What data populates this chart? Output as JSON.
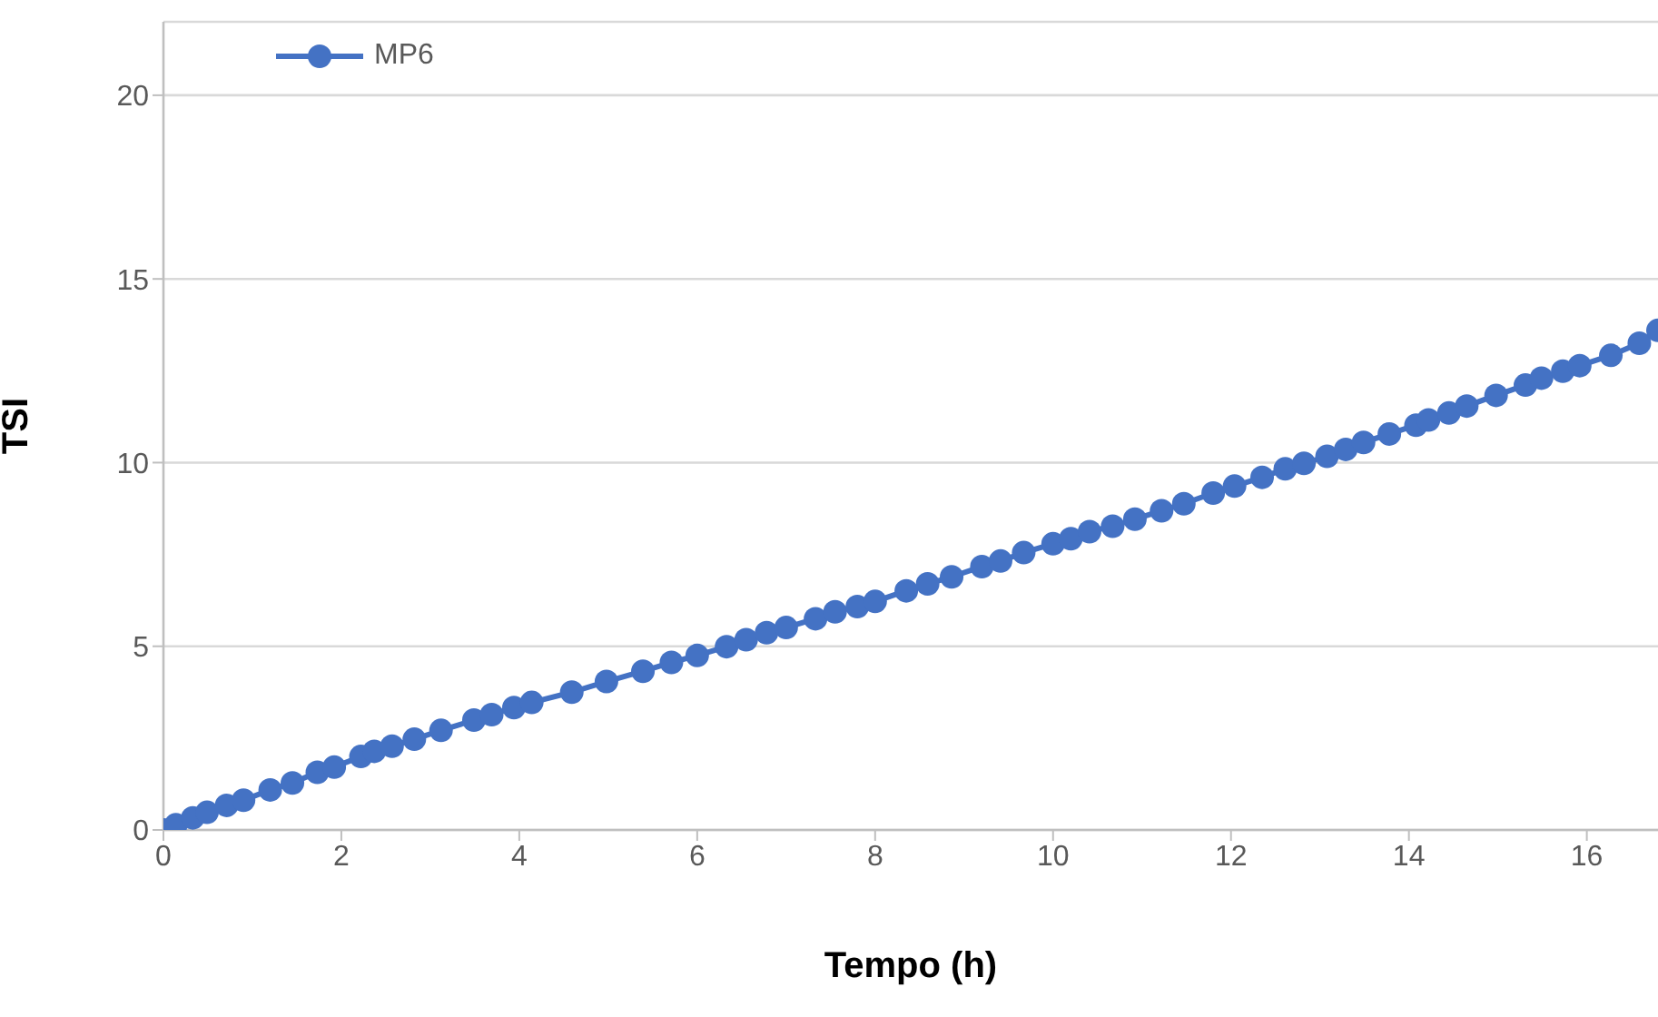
{
  "chart_data": {
    "type": "line",
    "xlabel": "Tempo (h)",
    "ylabel": "TSI",
    "xlim": [
      0,
      16.8
    ],
    "xticks": [
      0,
      2,
      4,
      6,
      8,
      10,
      12,
      14,
      16
    ],
    "ylim": [
      0,
      22
    ],
    "yticks": [
      0,
      5,
      10,
      15,
      20
    ],
    "grid": "y",
    "legend": "top left",
    "marker": "circle",
    "line_style": "solid",
    "x": [
      0,
      0.14,
      0.33,
      0.49,
      0.71,
      0.9,
      1.2,
      1.45,
      1.73,
      1.92,
      2.22,
      2.37,
      2.57,
      2.82,
      3.12,
      3.49,
      3.69,
      3.94,
      4.14,
      4.59,
      4.98,
      5.39,
      5.71,
      6,
      6.33,
      6.55,
      6.78,
      7,
      7.33,
      7.55,
      7.8,
      8,
      8.35,
      8.59,
      8.86,
      9.2,
      9.41,
      9.67,
      10,
      10.2,
      10.41,
      10.67,
      10.92,
      11.22,
      11.47,
      11.8,
      12.04,
      12.35,
      12.61,
      12.82,
      13.08,
      13.29,
      13.49,
      13.78,
      14.08,
      14.22,
      14.45,
      14.65,
      14.98,
      15.31,
      15.49,
      15.73,
      15.92,
      16.27,
      16.59,
      16.8
    ],
    "series": [
      {
        "name": "MP6",
        "color": "#4472c4",
        "values": [
          0,
          0.14,
          0.33,
          0.48,
          0.67,
          0.81,
          1.09,
          1.28,
          1.57,
          1.71,
          2,
          2.14,
          2.28,
          2.47,
          2.71,
          2.99,
          3.14,
          3.33,
          3.47,
          3.75,
          4.04,
          4.32,
          4.56,
          4.75,
          4.99,
          5.18,
          5.37,
          5.51,
          5.75,
          5.94,
          6.08,
          6.22,
          6.51,
          6.7,
          6.89,
          7.17,
          7.32,
          7.55,
          7.79,
          7.93,
          8.12,
          8.27,
          8.46,
          8.69,
          8.88,
          9.17,
          9.36,
          9.6,
          9.83,
          9.98,
          10.17,
          10.36,
          10.55,
          10.78,
          11.02,
          11.16,
          11.35,
          11.54,
          11.83,
          12.11,
          12.3,
          12.49,
          12.64,
          12.92,
          13.25,
          13.6
        ]
      }
    ]
  }
}
